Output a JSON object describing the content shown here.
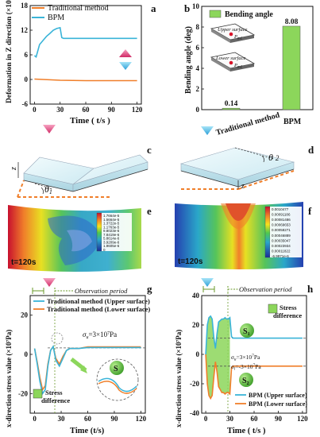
{
  "panels": {
    "a": {
      "letter": "a",
      "ylabel": "Deformation in Z direction (×10⁻⁴m)",
      "xlabel": "Time ( t/s )",
      "xticks": [
        "0",
        "30",
        "60",
        "90",
        "120"
      ],
      "yticks": [
        "-6",
        "0",
        "6",
        "12",
        "18"
      ],
      "legend": [
        "Traditional method",
        "BPM"
      ]
    },
    "b": {
      "letter": "b",
      "ylabel": "Bending angle (deg)",
      "yticks": [
        "0",
        "2",
        "4",
        "6",
        "8",
        "10"
      ],
      "legend": "Bending angle",
      "upper_surface": "Upper surface",
      "lower_surface": "Lower surface",
      "pm1": "P",
      "pm1_sub": "m1",
      "pm2": "P",
      "pm2_sub": "m2",
      "bar_labels": [
        "0.14",
        "8.08"
      ],
      "categories": [
        "Traditional method",
        "BPM"
      ]
    },
    "c": {
      "letter": "c",
      "theta": "θ",
      "theta_sub": "1",
      "z": "z"
    },
    "d": {
      "letter": "d",
      "theta": "θ",
      "theta_sub": "2",
      "z": "z"
    },
    "e": {
      "letter": "e",
      "time": "t=120s",
      "colorbar": [
        "1.7664e-5",
        "1.5664e-5",
        "1.3722e-5",
        "1.1763e-5",
        "9.8023e-6",
        "7.8419e-6",
        "5.8614e-6",
        "3.9209e-6",
        "1.9605e-6",
        "0"
      ]
    },
    "f": {
      "letter": "f",
      "time": "t=120s",
      "colorbar": [
        "0.0010477",
        "0.00091186",
        "0.00081486",
        "0.00069653",
        "0.00058271",
        "0.00046889",
        "0.00035047",
        "0.00023934",
        "0.00011822",
        "-6.9971e-6"
      ]
    },
    "g": {
      "letter": "g",
      "ylabel": "x-direction stress value (×10⁷Pa)",
      "xlabel": "Time (t/s)",
      "xticks": [
        "0",
        "30",
        "60",
        "90",
        "120"
      ],
      "yticks": [
        "-20",
        "0",
        "20"
      ],
      "observation": "Observation period",
      "legend": [
        "Traditional method (Upper surface)",
        "Traditional method (Lower surface)"
      ],
      "sigma": "σ",
      "sigma_sub": "u",
      "sigma_val": "=3×10",
      "sigma_exp": "7",
      "sigma_unit": "Pa",
      "s_label": "S",
      "stress_diff": [
        "Stress",
        "difference"
      ]
    },
    "h": {
      "letter": "h",
      "ylabel": "x-direction stress value (×10⁷Pa)",
      "xlabel": "Time ( t/s )",
      "xticks": [
        "0",
        "30",
        "60",
        "90",
        "120"
      ],
      "yticks": [
        "-40",
        "-20",
        "0",
        "20",
        "40"
      ],
      "observation": "Observation period",
      "legend": [
        "BPM (Upper surface)",
        "BPM (Lower surface)"
      ],
      "stress_diff": [
        "Stress",
        "difference"
      ],
      "s1": "S",
      "s1_sub": "1",
      "s2": "S",
      "s2_sub": "2",
      "sigma_u": "σ",
      "sigma_u_sub": "u",
      "sigma_u_val": "=3×10",
      "sigma_u_exp": "7",
      "sigma_u_unit": "Pa",
      "sigma_l": "σ",
      "sigma_l_sub": "l",
      "sigma_l_val": "=-3×10",
      "sigma_l_exp": "7",
      "sigma_l_unit": "Pa"
    }
  },
  "colors": {
    "traditional": "#f07f2a",
    "bpm": "#3ab4d8",
    "bar": "#8cd65b",
    "arrow_pink": "#e0457a",
    "arrow_blue": "#3bb3e6",
    "fill_green": "#8cd65b"
  },
  "chart_data": [
    {
      "type": "line",
      "panel": "a",
      "xlim": [
        -5,
        125
      ],
      "ylim": [
        -6,
        18
      ],
      "series": [
        {
          "name": "Traditional method",
          "x": [
            0,
            30,
            60,
            90,
            120
          ],
          "y": [
            0.1,
            -0.2,
            -0.3,
            -0.3,
            -0.3
          ]
        },
        {
          "name": "BPM",
          "x": [
            0,
            2,
            6,
            10,
            14,
            18,
            22,
            26,
            30,
            32,
            34,
            40,
            60,
            90,
            120
          ],
          "y": [
            5.8,
            5.5,
            8.5,
            9.5,
            10.5,
            11.2,
            12,
            12.4,
            12.6,
            10.2,
            10,
            10,
            10,
            10,
            10
          ]
        }
      ]
    },
    {
      "type": "bar",
      "panel": "b",
      "categories": [
        "Traditional method",
        "BPM"
      ],
      "values": [
        0.14,
        8.08
      ],
      "ylim": [
        0,
        10
      ]
    },
    {
      "type": "line",
      "panel": "g",
      "xlim": [
        -5,
        125
      ],
      "ylim": [
        -30,
        30
      ],
      "series": [
        {
          "name": "Traditional method (Upper surface)",
          "x": [
            0,
            3,
            6,
            9,
            12,
            15,
            18,
            21,
            24,
            28,
            32,
            36,
            40,
            50,
            60,
            90,
            120
          ],
          "y": [
            3,
            -5,
            -14,
            -20,
            -18,
            -6,
            2,
            4,
            -3,
            -6,
            -2,
            2,
            3,
            3,
            3.5,
            3.5,
            3.5
          ]
        },
        {
          "name": "Traditional method (Lower surface)",
          "x": [
            0,
            3,
            6,
            9,
            12,
            15,
            18,
            21,
            24,
            28,
            32,
            36,
            40,
            50,
            60,
            90,
            120
          ],
          "y": [
            3,
            -4,
            -12,
            -18,
            -16,
            -5,
            2,
            4,
            -2,
            -5,
            -1,
            2,
            3,
            3,
            3.8,
            3.8,
            3.8
          ]
        }
      ]
    },
    {
      "type": "line",
      "panel": "h",
      "xlim": [
        -5,
        125
      ],
      "ylim": [
        -40,
        40
      ],
      "series": [
        {
          "name": "BPM (Upper surface)",
          "x": [
            0,
            2,
            4,
            6,
            8,
            10,
            12,
            14,
            16,
            18,
            20,
            22,
            24,
            26,
            28,
            30,
            32,
            34,
            36,
            40,
            50,
            60,
            90,
            120
          ],
          "y": [
            0,
            20,
            25,
            26,
            24,
            12,
            4,
            14,
            22,
            23,
            24,
            24,
            25,
            24,
            24,
            25,
            12,
            11,
            11,
            11,
            11,
            11,
            11,
            11
          ]
        },
        {
          "name": "BPM (Lower surface)",
          "x": [
            0,
            2,
            4,
            6,
            8,
            10,
            12,
            14,
            16,
            18,
            20,
            22,
            24,
            26,
            28,
            30,
            32,
            34,
            36,
            40,
            50,
            60,
            90,
            120
          ],
          "y": [
            0,
            -20,
            -28,
            -30,
            -28,
            -16,
            -5,
            -12,
            -22,
            -24,
            -26,
            -26,
            -27,
            -26,
            -26,
            -27,
            -9,
            -8,
            -8,
            -8,
            -8,
            -8,
            -8,
            -8
          ]
        }
      ]
    }
  ]
}
